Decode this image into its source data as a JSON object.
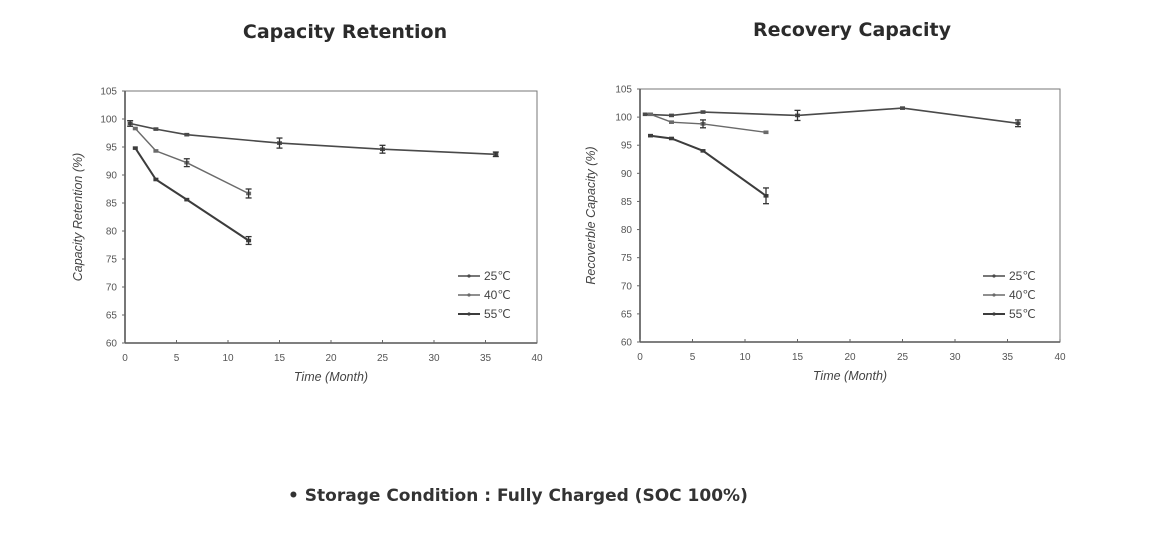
{
  "footnote": {
    "bullet": "•",
    "text": "Storage Condition : Fully Charged (SOC 100%)"
  },
  "chart_data": [
    {
      "type": "line",
      "title": "Capacity Retention",
      "xlabel": "Time (Month)",
      "ylabel": "Capacity Retention (%)",
      "xlim": [
        0,
        40
      ],
      "ylim": [
        60,
        105
      ],
      "xticks": [
        0,
        5,
        10,
        15,
        20,
        25,
        30,
        35,
        40
      ],
      "yticks": [
        60,
        65,
        70,
        75,
        80,
        85,
        90,
        95,
        100,
        105
      ],
      "grid": false,
      "legend_position": "bottom-right",
      "series": [
        {
          "name": "25℃",
          "x": [
            0.5,
            3,
            6,
            15,
            25,
            36
          ],
          "y": [
            99.2,
            98.2,
            97.2,
            95.7,
            94.6,
            93.7
          ],
          "error_bars": [
            0.5,
            0,
            0,
            0.9,
            0.7,
            0.4
          ]
        },
        {
          "name": "40℃",
          "x": [
            1,
            3,
            6,
            12
          ],
          "y": [
            98.3,
            94.3,
            92.2,
            86.7
          ],
          "error_bars": [
            0,
            0,
            0.7,
            0.8
          ]
        },
        {
          "name": "55℃",
          "x": [
            1,
            3,
            6,
            12
          ],
          "y": [
            94.8,
            89.2,
            85.6,
            78.3
          ],
          "error_bars": [
            0,
            0,
            0,
            0.7
          ]
        }
      ]
    },
    {
      "type": "line",
      "title": "Recovery Capacity",
      "xlabel": "Time (Month)",
      "ylabel": "Recoverble Capacity (%)",
      "xlim": [
        0,
        40
      ],
      "ylim": [
        60,
        105
      ],
      "xticks": [
        0,
        5,
        10,
        15,
        20,
        25,
        30,
        35,
        40
      ],
      "yticks": [
        60,
        65,
        70,
        75,
        80,
        85,
        90,
        95,
        100,
        105
      ],
      "grid": false,
      "legend_position": "bottom-right",
      "series": [
        {
          "name": "25℃",
          "x": [
            0.5,
            3,
            6,
            15,
            25,
            36
          ],
          "y": [
            100.5,
            100.3,
            100.9,
            100.3,
            101.6,
            98.9
          ],
          "error_bars": [
            0,
            0,
            0,
            0.9,
            0,
            0.6
          ]
        },
        {
          "name": "40℃",
          "x": [
            1,
            3,
            6,
            12
          ],
          "y": [
            100.5,
            99.1,
            98.8,
            97.3
          ],
          "error_bars": [
            0,
            0,
            0.7,
            0
          ]
        },
        {
          "name": "55℃",
          "x": [
            1,
            3,
            6,
            12
          ],
          "y": [
            96.7,
            96.2,
            94.0,
            86.0
          ],
          "error_bars": [
            0,
            0,
            0,
            1.4
          ]
        }
      ]
    }
  ]
}
